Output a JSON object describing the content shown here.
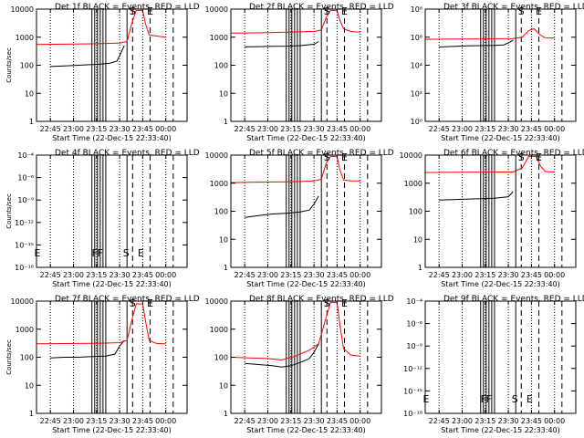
{
  "colors": {
    "events": "#000000",
    "lld": "#ff0000",
    "background": "#ffffff"
  },
  "x_tick_labels": [
    "22:45",
    "23:00",
    "23:15",
    "23:30",
    "23:45",
    "00:00"
  ],
  "x_tick_hours": [
    22.75,
    23.0,
    23.25,
    23.5,
    23.75,
    24.0
  ],
  "xlim_hours": [
    22.6,
    24.23
  ],
  "xlabel": "Start Time (22-Dec-15 22:33:40)",
  "chart_data": [
    {
      "type": "line",
      "detector": "1f",
      "title": "Det 1f BLACK = Events, RED = LLD",
      "xlabel": "Start Time (22-Dec-15 22:33:40)",
      "ylabel": "Counts/sec",
      "yscale": "log",
      "ylim": [
        1,
        10000
      ],
      "y_tick_labels": [
        "1",
        "10",
        "100",
        "1000",
        "10000"
      ],
      "annotations": [
        {
          "text": "S",
          "x": 23.64
        },
        {
          "text": "E",
          "x": 23.83
        }
      ],
      "series": [
        {
          "color": "#000000",
          "x": [
            22.75,
            22.9,
            23.05,
            23.2,
            23.3,
            23.4,
            23.47,
            23.52,
            23.55
          ],
          "y": [
            90,
            95,
            100,
            105,
            110,
            120,
            140,
            300,
            500
          ]
        },
        {
          "color": "#ff0000",
          "x": [
            22.6,
            22.8,
            23.0,
            23.2,
            23.35,
            23.5,
            23.58,
            23.63,
            23.68,
            23.75,
            23.78,
            23.82,
            23.9,
            24.0
          ],
          "y": [
            550,
            560,
            570,
            580,
            600,
            620,
            700,
            3000,
            9000,
            9000,
            3000,
            1200,
            1100,
            1000
          ]
        }
      ]
    },
    {
      "type": "line",
      "detector": "2f",
      "title": "Det 2f BLACK = Events, RED = LLD",
      "xlabel": "Start Time (22-Dec-15 22:33:40)",
      "ylabel": "",
      "yscale": "log",
      "ylim": [
        1,
        10000
      ],
      "y_tick_labels": [
        "1",
        "10",
        "100",
        "1000",
        "10000"
      ],
      "annotations": [
        {
          "text": "S",
          "x": 23.64
        },
        {
          "text": "E",
          "x": 23.83
        }
      ],
      "series": [
        {
          "color": "#000000",
          "x": [
            22.75,
            22.9,
            23.05,
            23.2,
            23.35,
            23.5,
            23.55
          ],
          "y": [
            450,
            460,
            470,
            480,
            500,
            560,
            700
          ]
        },
        {
          "color": "#ff0000",
          "x": [
            22.6,
            22.8,
            23.0,
            23.2,
            23.35,
            23.5,
            23.58,
            23.63,
            23.68,
            23.75,
            23.78,
            23.82,
            23.9,
            24.0
          ],
          "y": [
            1400,
            1420,
            1450,
            1500,
            1550,
            1600,
            1800,
            5000,
            9000,
            9000,
            4000,
            2000,
            1600,
            1500
          ]
        }
      ]
    },
    {
      "type": "line",
      "detector": "3f",
      "title": "Det 3f BLACK = Events, RED = LLD",
      "xlabel": "Start Time (22-Dec-15 22:33:40)",
      "ylabel": "",
      "yscale": "log",
      "ylim": [
        1,
        100000000
      ],
      "y_tick_labels": [
        "10⁰",
        "10²",
        "10⁴",
        "10⁶",
        "10⁸"
      ],
      "annotations": [
        {
          "text": "S",
          "x": 23.64
        },
        {
          "text": "E",
          "x": 23.83
        }
      ],
      "series": [
        {
          "color": "#000000",
          "x": [
            22.75,
            22.9,
            23.05,
            23.2,
            23.35,
            23.45,
            23.5,
            23.55
          ],
          "y": [
            200000,
            220000,
            240000,
            250000,
            260000,
            280000,
            400000,
            600000
          ]
        },
        {
          "color": "#ff0000",
          "x": [
            22.6,
            22.8,
            23.0,
            23.2,
            23.4,
            23.55,
            23.65,
            23.72,
            23.78,
            23.84,
            23.9,
            24.0
          ],
          "y": [
            700000,
            720000,
            740000,
            760000,
            780000,
            800000,
            1000000,
            3000000,
            4000000,
            1500000,
            900000,
            850000
          ]
        }
      ]
    },
    {
      "type": "line",
      "detector": "4f",
      "title": "Det 4f BLACK = Events, RED = LLD",
      "xlabel": "Start Time (22-Dec-15 22:33:40)",
      "ylabel": "Counts/sec",
      "yscale": "log",
      "ylim": [
        1e-18,
        0.0001
      ],
      "y_tick_labels": [
        "10⁻¹⁸",
        "10⁻¹⁵",
        "10⁻¹²",
        "10⁻⁹",
        "10⁻⁶",
        "10⁻⁴"
      ],
      "annotations": [
        {
          "text": "E",
          "x": 22.61
        },
        {
          "text": "F",
          "x": 23.23
        },
        {
          "text": "F",
          "x": 23.29
        },
        {
          "text": "S",
          "x": 23.57
        },
        {
          "text": "E",
          "x": 23.73
        }
      ],
      "series": []
    },
    {
      "type": "line",
      "detector": "5f",
      "title": "Det 5f BLACK = Events, RED = LLD",
      "xlabel": "Start Time (22-Dec-15 22:33:40)",
      "ylabel": "",
      "yscale": "log",
      "ylim": [
        1,
        10000
      ],
      "y_tick_labels": [
        "1",
        "10",
        "100",
        "1000",
        "10000"
      ],
      "annotations": [
        {
          "text": "S",
          "x": 23.64
        },
        {
          "text": "E",
          "x": 23.83
        }
      ],
      "series": [
        {
          "color": "#000000",
          "x": [
            22.75,
            22.9,
            23.05,
            23.2,
            23.35,
            23.45,
            23.5,
            23.55
          ],
          "y": [
            60,
            70,
            80,
            85,
            95,
            110,
            180,
            350
          ]
        },
        {
          "color": "#ff0000",
          "x": [
            22.6,
            22.8,
            23.0,
            23.2,
            23.35,
            23.5,
            23.58,
            23.63,
            23.68,
            23.75,
            23.78,
            23.82,
            23.9,
            24.0
          ],
          "y": [
            1050,
            1080,
            1100,
            1120,
            1150,
            1200,
            1400,
            5000,
            9000,
            9000,
            3000,
            1300,
            1200,
            1200
          ]
        }
      ]
    },
    {
      "type": "line",
      "detector": "6f",
      "title": "Det 6f BLACK = Events, RED = LLD",
      "xlabel": "Start Time (22-Dec-15 22:33:40)",
      "ylabel": "",
      "yscale": "log",
      "ylim": [
        1,
        10000
      ],
      "y_tick_labels": [
        "1",
        "10",
        "100",
        "1000",
        "10000"
      ],
      "annotations": [
        {
          "text": "S",
          "x": 23.64
        },
        {
          "text": "E",
          "x": 23.83
        }
      ],
      "series": [
        {
          "color": "#000000",
          "x": [
            22.75,
            22.9,
            23.05,
            23.2,
            23.35,
            23.5,
            23.55
          ],
          "y": [
            250,
            260,
            270,
            280,
            290,
            330,
            500
          ]
        },
        {
          "color": "#ff0000",
          "x": [
            22.6,
            22.8,
            23.0,
            23.2,
            23.4,
            23.55,
            23.65,
            23.72,
            23.8,
            23.85,
            23.9,
            24.0
          ],
          "y": [
            2400,
            2420,
            2450,
            2480,
            2500,
            2500,
            3500,
            9000,
            9000,
            4000,
            2600,
            2500
          ]
        }
      ]
    },
    {
      "type": "line",
      "detector": "7f",
      "title": "Det 7f BLACK = Events, RED = LLD",
      "xlabel": "Start Time (22-Dec-15 22:33:40)",
      "ylabel": "Counts/sec",
      "yscale": "log",
      "ylim": [
        1,
        10000
      ],
      "y_tick_labels": [
        "1",
        "10",
        "100",
        "1000",
        "10000"
      ],
      "annotations": [
        {
          "text": "S",
          "x": 23.64
        },
        {
          "text": "E",
          "x": 23.83
        }
      ],
      "series": [
        {
          "color": "#000000",
          "x": [
            22.75,
            22.9,
            23.05,
            23.2,
            23.35,
            23.45,
            23.5,
            23.55
          ],
          "y": [
            95,
            100,
            100,
            105,
            110,
            130,
            250,
            400
          ]
        },
        {
          "color": "#ff0000",
          "x": [
            22.6,
            22.8,
            23.0,
            23.2,
            23.35,
            23.5,
            23.58,
            23.63,
            23.68,
            23.75,
            23.78,
            23.82,
            23.9,
            24.0
          ],
          "y": [
            300,
            305,
            310,
            315,
            320,
            330,
            400,
            2000,
            8000,
            8000,
            2000,
            400,
            310,
            300
          ]
        }
      ]
    },
    {
      "type": "line",
      "detector": "8f",
      "title": "Det 8f BLACK = Events, RED = LLD",
      "xlabel": "Start Time (22-Dec-15 22:33:40)",
      "ylabel": "",
      "yscale": "log",
      "ylim": [
        1,
        10000
      ],
      "y_tick_labels": [
        "1",
        "10",
        "100",
        "1000",
        "10000"
      ],
      "annotations": [
        {
          "text": "S",
          "x": 23.64
        },
        {
          "text": "E",
          "x": 23.83
        }
      ],
      "series": [
        {
          "color": "#000000",
          "x": [
            22.75,
            22.9,
            23.05,
            23.15,
            23.25,
            23.35,
            23.45,
            23.5,
            23.55
          ],
          "y": [
            60,
            55,
            50,
            45,
            50,
            65,
            90,
            150,
            300
          ]
        },
        {
          "color": "#ff0000",
          "x": [
            22.6,
            22.8,
            23.0,
            23.15,
            23.3,
            23.45,
            23.55,
            23.62,
            23.68,
            23.75,
            23.78,
            23.82,
            23.9,
            24.0
          ],
          "y": [
            100,
            95,
            90,
            80,
            110,
            180,
            300,
            2000,
            9000,
            9000,
            1500,
            200,
            120,
            110
          ]
        }
      ]
    },
    {
      "type": "line",
      "detector": "9f",
      "title": "Det 9f BLACK = Events, RED = LLD",
      "xlabel": "Start Time (22-Dec-15 22:33:40)",
      "ylabel": "",
      "yscale": "log",
      "ylim": [
        1e-18,
        0.0001
      ],
      "y_tick_labels": [
        "10⁻¹⁸",
        "10⁻¹⁵",
        "10⁻¹²",
        "10⁻⁹",
        "10⁻⁶",
        "10⁻⁴"
      ],
      "annotations": [
        {
          "text": "E",
          "x": 22.61
        },
        {
          "text": "F",
          "x": 23.23
        },
        {
          "text": "F",
          "x": 23.29
        },
        {
          "text": "S",
          "x": 23.57
        },
        {
          "text": "E",
          "x": 23.73
        }
      ],
      "series": []
    }
  ]
}
